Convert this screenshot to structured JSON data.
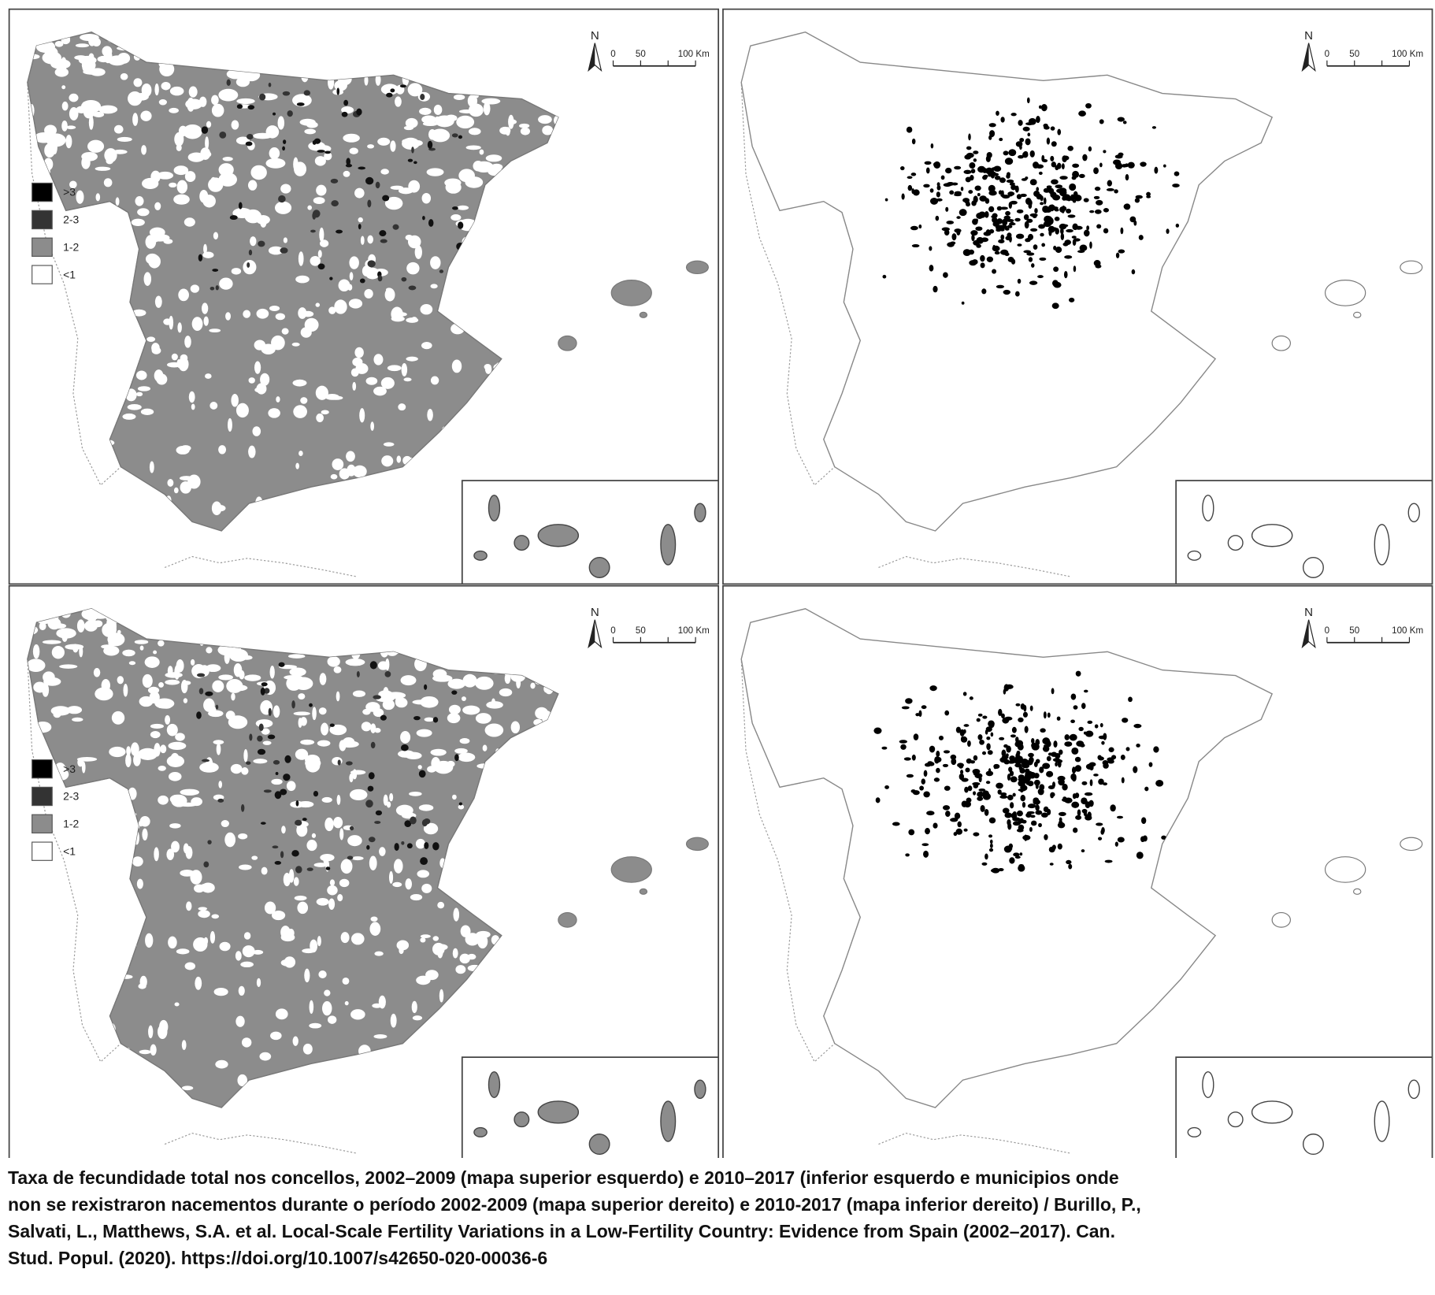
{
  "panels": [
    {
      "scale": {
        "north": "N",
        "ticks": [
          "0",
          "50",
          "100 Km"
        ]
      },
      "legend": [
        ">3",
        "2-3",
        "1-2",
        "<1"
      ]
    },
    {
      "scale": {
        "north": "N",
        "ticks": [
          "0",
          "50",
          "100 Km"
        ]
      }
    },
    {
      "scale": {
        "north": "N",
        "ticks": [
          "0",
          "50",
          "100 Km"
        ]
      },
      "legend": [
        ">3",
        "2-3",
        "1-2",
        "<1"
      ]
    },
    {
      "scale": {
        "north": "N",
        "ticks": [
          "0",
          "50",
          "100 Km"
        ]
      }
    }
  ],
  "caption": [
    "Taxa de fecundidade total nos concellos, 2002–2009 (mapa superior esquerdo) e 2010–2017 (inferior esquerdo e municipios onde",
    "non se rexistraron nacementos durante o período 2002-2009 (mapa superior dereito) e 2010-2017 (mapa inferior dereito) / Burillo, P.,",
    "Salvati, L., Matthews, S.A. et al. Local-Scale Fertility Variations in a Low-Fertility Country: Evidence from Spain (2002–2017). Can.",
    "Stud. Popul. (2020). https://doi.org/10.1007/s42650-020-00036-6"
  ]
}
